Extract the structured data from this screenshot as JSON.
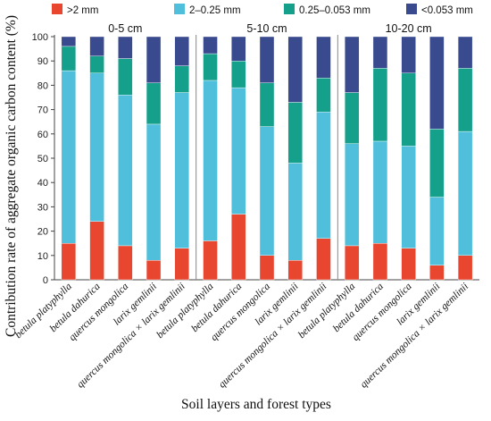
{
  "chart_data": {
    "type": "bar",
    "stacked": true,
    "ylabel": "Contribution rate of aggregate organic carbon content (%)",
    "xlabel": "Soil layers and forest types",
    "ylim": [
      0,
      100
    ],
    "yticks": [
      0,
      10,
      20,
      30,
      40,
      50,
      60,
      70,
      80,
      90,
      100
    ],
    "grid": false,
    "legend_position": "top",
    "legend": [
      {
        "name": ">2 mm",
        "color": "#e8462f"
      },
      {
        "name": "2–0.25 mm",
        "color": "#4fbfdc"
      },
      {
        "name": "0.25–0.053 mm",
        "color": "#14a08a"
      },
      {
        "name": "<0.053 mm",
        "color": "#3a4a8f"
      }
    ],
    "groups": [
      {
        "label": "0-5 cm",
        "categories": [
          "betula platyphylla",
          "betula dahurica",
          "quercus mongolica",
          "larix gemlinii",
          "quercus mongolica × larix gemlinii"
        ]
      },
      {
        "label": "5-10 cm",
        "categories": [
          "betula platyphylla",
          "betula dahurica",
          "quercus mongolica",
          "larix gemlinii",
          "quercus mongolica × larix gemlinii"
        ]
      },
      {
        "label": "10-20 cm",
        "categories": [
          "betula platyphylla",
          "betula dahurica",
          "quercus mongolica",
          "larix gemlinii",
          "quercus mongolica × larix gemlinii"
        ]
      }
    ],
    "series": [
      {
        "name": ">2 mm",
        "color": "#e8462f",
        "values": [
          15,
          24,
          14,
          8,
          13,
          16,
          27,
          10,
          8,
          17,
          14,
          15,
          13,
          6,
          10
        ]
      },
      {
        "name": "2–0.25 mm",
        "color": "#4fbfdc",
        "values": [
          71,
          61,
          62,
          56,
          64,
          66,
          52,
          53,
          40,
          52,
          42,
          42,
          42,
          28,
          51
        ]
      },
      {
        "name": "0.25–0.053 mm",
        "color": "#14a08a",
        "values": [
          10,
          7,
          15,
          17,
          11,
          11,
          11,
          18,
          25,
          14,
          21,
          30,
          30,
          28,
          26
        ]
      },
      {
        "name": "<0.053 mm",
        "color": "#3a4a8f",
        "values": [
          4,
          8,
          9,
          19,
          12,
          7,
          10,
          19,
          27,
          17,
          23,
          13,
          15,
          38,
          13
        ]
      }
    ]
  }
}
